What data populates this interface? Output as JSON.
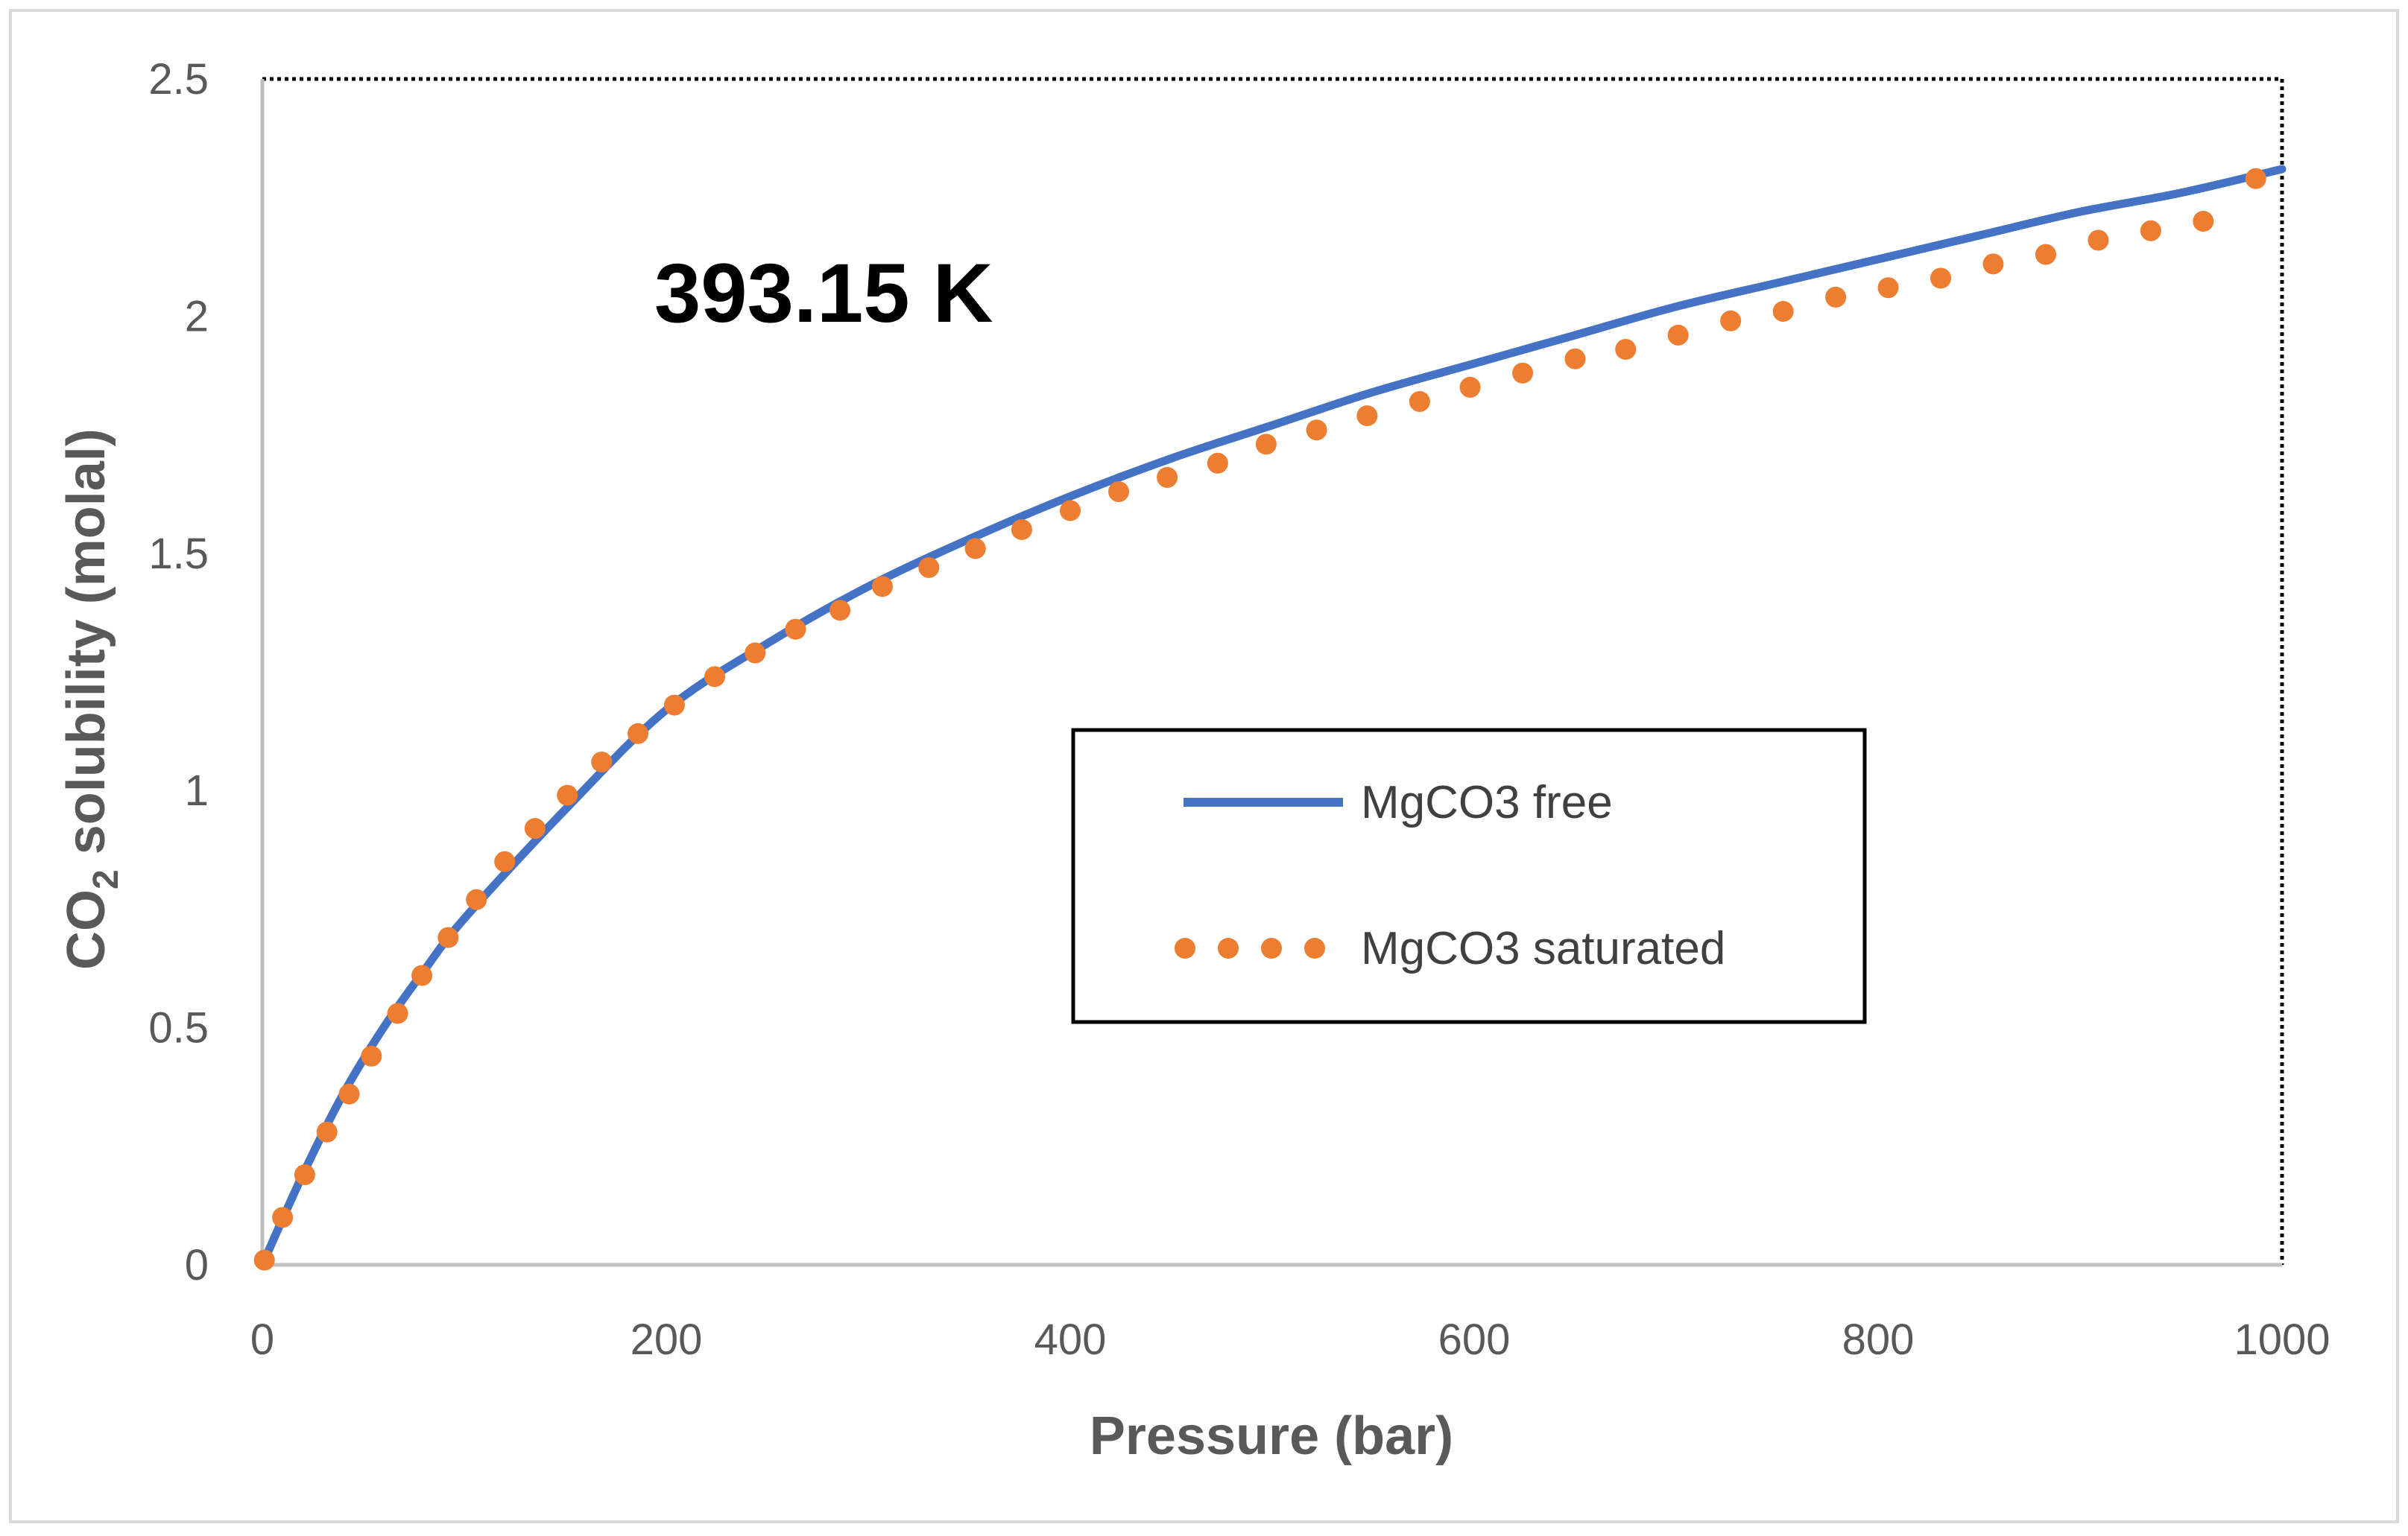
{
  "chart_data": {
    "type": "line",
    "title": "",
    "annotation": "393.15 K",
    "xlabel": "Pressure (bar)",
    "ylabel_main": "CO",
    "ylabel_sub": "2",
    "ylabel_rest": " solubility (molal)",
    "xlim": [
      0,
      1000
    ],
    "ylim": [
      0,
      2.5
    ],
    "xticks": [
      "0",
      "200",
      "400",
      "600",
      "800",
      "1000"
    ],
    "yticks": [
      "0",
      "0.5",
      "1",
      "1.5",
      "2",
      "2.5"
    ],
    "grid": false,
    "legend_position": "center-right",
    "series": [
      {
        "name": "MgCO3 free",
        "style": "solid-line",
        "color": "#4472C4",
        "x": [
          0,
          20,
          40,
          60,
          80,
          100,
          150,
          200,
          250,
          300,
          350,
          400,
          450,
          500,
          550,
          600,
          650,
          700,
          750,
          800,
          850,
          900,
          950,
          1000
        ],
        "y": [
          0.0,
          0.19,
          0.36,
          0.5,
          0.62,
          0.73,
          0.96,
          1.17,
          1.31,
          1.43,
          1.53,
          1.62,
          1.7,
          1.77,
          1.84,
          1.9,
          1.96,
          2.02,
          2.07,
          2.12,
          2.17,
          2.22,
          2.26,
          2.31
        ]
      },
      {
        "name": "MgCO3 saturated",
        "style": "dots",
        "color": "#ED7D31",
        "x": [
          1,
          10,
          21,
          32,
          43,
          54,
          67,
          79,
          92,
          106,
          120,
          135,
          151,
          168,
          186,
          204,
          224,
          244,
          264,
          286,
          307,
          330,
          353,
          376,
          400,
          424,
          448,
          473,
          497,
          522,
          547,
          573,
          598,
          624,
          650,
          675,
          701,
          727,
          753,
          779,
          805,
          831,
          857,
          883,
          909,
          935,
          961,
          987
        ],
        "y": [
          0.01,
          0.1,
          0.19,
          0.28,
          0.36,
          0.44,
          0.53,
          0.61,
          0.69,
          0.77,
          0.85,
          0.92,
          0.99,
          1.06,
          1.12,
          1.18,
          1.24,
          1.29,
          1.34,
          1.38,
          1.43,
          1.47,
          1.51,
          1.55,
          1.59,
          1.63,
          1.66,
          1.69,
          1.73,
          1.76,
          1.79,
          1.82,
          1.85,
          1.88,
          1.91,
          1.93,
          1.96,
          1.99,
          2.01,
          2.04,
          2.06,
          2.08,
          2.11,
          2.13,
          2.16,
          2.18,
          2.2,
          2.29
        ]
      }
    ]
  }
}
